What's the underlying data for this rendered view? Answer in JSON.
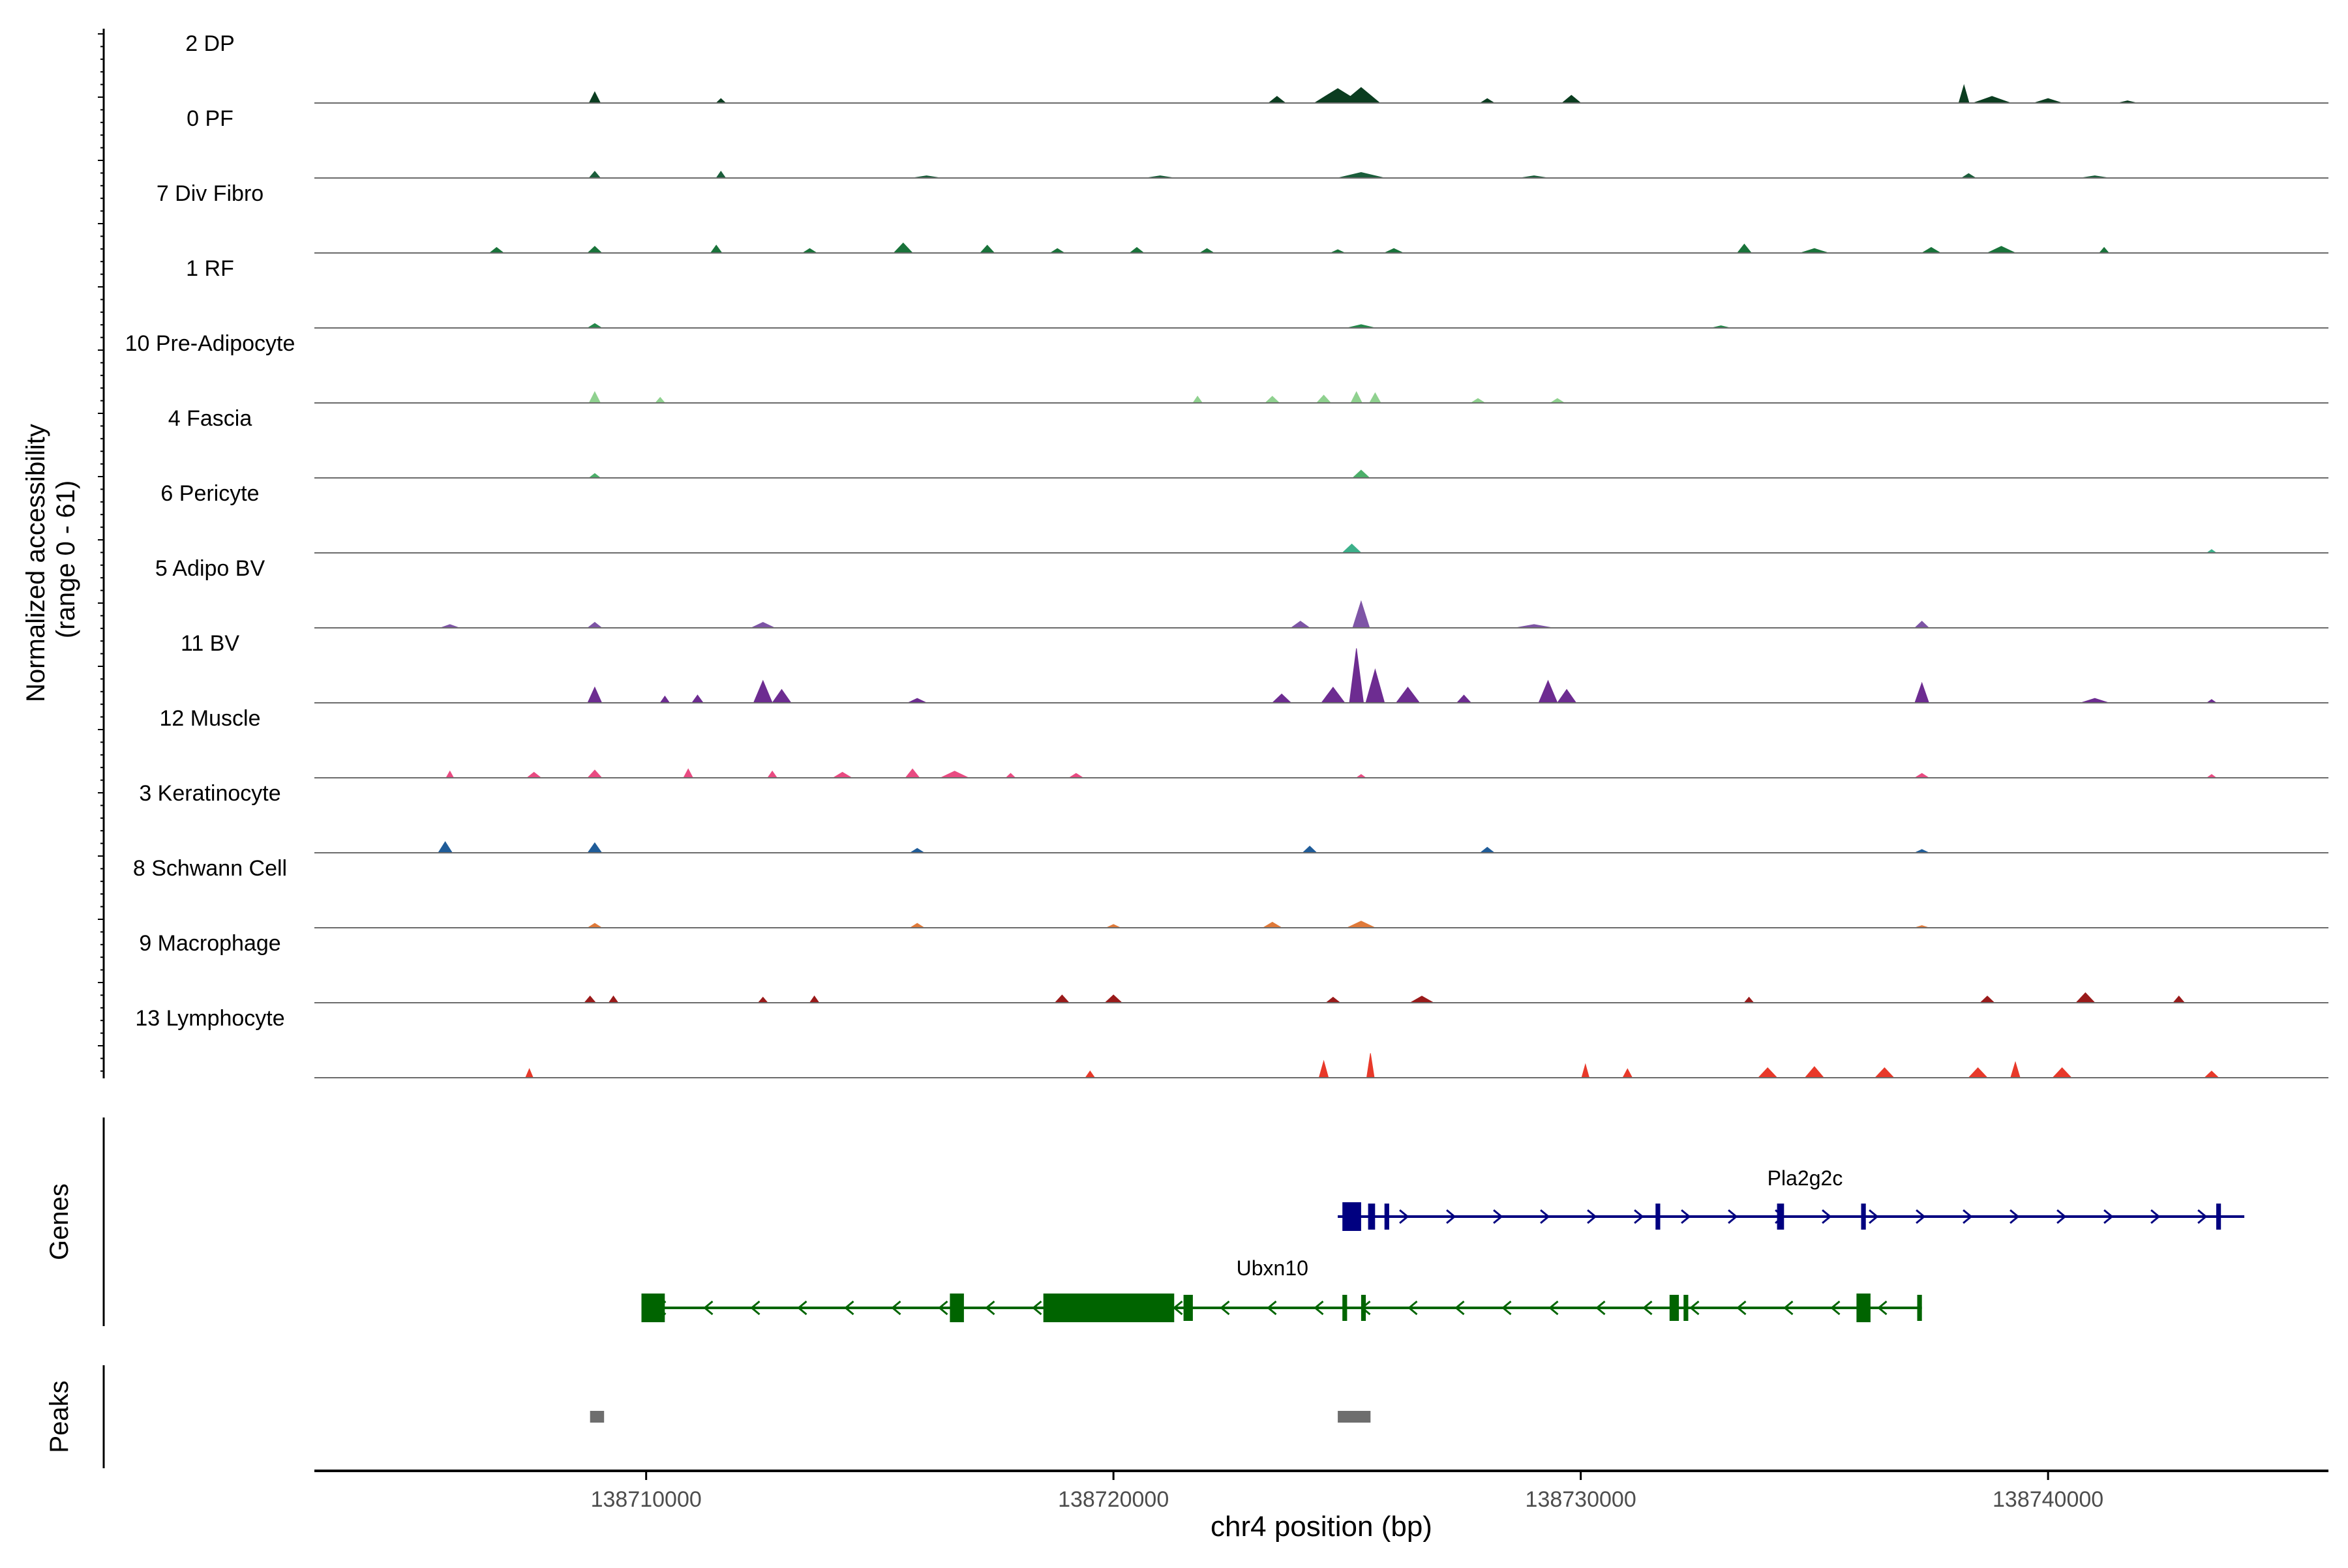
{
  "chart_data": {
    "type": "area",
    "title": "",
    "coverage": {
      "ylabel_line1": "Normalized accessibility",
      "ylabel_line2": "(range 0 - 61)",
      "ymax": 61,
      "tracks": [
        {
          "label": "2 DP",
          "color": "#0b3d20",
          "peaks": [
            [
              138708900,
              10,
              120
            ],
            [
              138711600,
              4,
              100
            ],
            [
              138723500,
              6,
              180
            ],
            [
              138724800,
              13,
              500
            ],
            [
              138725300,
              14,
              400
            ],
            [
              138728000,
              4,
              150
            ],
            [
              138729800,
              7,
              200
            ],
            [
              138738200,
              16,
              110
            ],
            [
              138738800,
              6,
              400
            ],
            [
              138740000,
              4,
              300
            ],
            [
              138741700,
              2,
              200
            ]
          ]
        },
        {
          "label": "0 PF",
          "color": "#1b5e3b",
          "peaks": [
            [
              138708900,
              6,
              120
            ],
            [
              138711600,
              6,
              100
            ],
            [
              138716000,
              2,
              300
            ],
            [
              138721000,
              2,
              300
            ],
            [
              138725300,
              5,
              500
            ],
            [
              138729000,
              2,
              300
            ],
            [
              138738300,
              4,
              150
            ],
            [
              138741000,
              2,
              300
            ]
          ]
        },
        {
          "label": "7 Div Fibro",
          "color": "#19733a",
          "peaks": [
            [
              138706800,
              5,
              150
            ],
            [
              138708900,
              6,
              150
            ],
            [
              138711500,
              7,
              120
            ],
            [
              138713500,
              4,
              150
            ],
            [
              138715500,
              9,
              200
            ],
            [
              138717300,
              7,
              150
            ],
            [
              138718800,
              4,
              150
            ],
            [
              138720500,
              5,
              150
            ],
            [
              138722000,
              4,
              150
            ],
            [
              138724800,
              3,
              150
            ],
            [
              138726000,
              4,
              200
            ],
            [
              138733500,
              8,
              150
            ],
            [
              138735000,
              4,
              300
            ],
            [
              138737500,
              5,
              200
            ],
            [
              138739000,
              6,
              300
            ],
            [
              138741200,
              5,
              100
            ]
          ]
        },
        {
          "label": "1 RF",
          "color": "#24884a",
          "peaks": [
            [
              138708900,
              4,
              150
            ],
            [
              138725300,
              3,
              300
            ],
            [
              138733000,
              2,
              200
            ]
          ]
        },
        {
          "label": "10 Pre-Adipocyte",
          "color": "#8fd18f",
          "peaks": [
            [
              138708900,
              10,
              120
            ],
            [
              138710300,
              5,
              100
            ],
            [
              138721800,
              6,
              100
            ],
            [
              138723400,
              6,
              150
            ],
            [
              138724500,
              7,
              150
            ],
            [
              138725200,
              10,
              120
            ],
            [
              138725600,
              9,
              120
            ],
            [
              138727800,
              4,
              150
            ],
            [
              138729500,
              4,
              150
            ]
          ]
        },
        {
          "label": "4 Fascia",
          "color": "#4caf6a",
          "peaks": [
            [
              138708900,
              4,
              120
            ],
            [
              138725300,
              7,
              180
            ]
          ]
        },
        {
          "label": "6 Pericyte",
          "color": "#3cb08a",
          "peaks": [
            [
              138725100,
              8,
              200
            ],
            [
              138743500,
              3,
              100
            ]
          ]
        },
        {
          "label": "5 Adipo BV",
          "color": "#7e55a6",
          "peaks": [
            [
              138705800,
              3,
              200
            ],
            [
              138708900,
              5,
              150
            ],
            [
              138712500,
              5,
              250
            ],
            [
              138724000,
              6,
              200
            ],
            [
              138725300,
              24,
              180
            ],
            [
              138729000,
              3,
              400
            ],
            [
              138737300,
              6,
              150
            ]
          ]
        },
        {
          "label": "11 BV",
          "color": "#6d2c91",
          "peaks": [
            [
              138708900,
              14,
              150
            ],
            [
              138710400,
              6,
              100
            ],
            [
              138711100,
              7,
              120
            ],
            [
              138712500,
              20,
              200
            ],
            [
              138712900,
              12,
              200
            ],
            [
              138715800,
              4,
              200
            ],
            [
              138723600,
              8,
              200
            ],
            [
              138724700,
              14,
              250
            ],
            [
              138725200,
              49,
              150
            ],
            [
              138725600,
              30,
              200
            ],
            [
              138726300,
              14,
              250
            ],
            [
              138727500,
              7,
              150
            ],
            [
              138729300,
              20,
              200
            ],
            [
              138729700,
              12,
              200
            ],
            [
              138737300,
              18,
              150
            ],
            [
              138741000,
              4,
              300
            ],
            [
              138743500,
              3,
              100
            ]
          ]
        },
        {
          "label": "12 Muscle",
          "color": "#e94b82",
          "peaks": [
            [
              138705800,
              6,
              80
            ],
            [
              138707600,
              5,
              150
            ],
            [
              138708900,
              7,
              150
            ],
            [
              138710900,
              8,
              100
            ],
            [
              138712700,
              6,
              100
            ],
            [
              138714200,
              5,
              200
            ],
            [
              138715700,
              8,
              150
            ],
            [
              138716600,
              6,
              300
            ],
            [
              138717800,
              4,
              100
            ],
            [
              138719200,
              4,
              150
            ],
            [
              138725300,
              3,
              100
            ],
            [
              138737300,
              4,
              150
            ],
            [
              138743500,
              3,
              100
            ]
          ]
        },
        {
          "label": "3 Keratinocyte",
          "color": "#1f5c99",
          "peaks": [
            [
              138705700,
              10,
              150
            ],
            [
              138708900,
              9,
              150
            ],
            [
              138715800,
              4,
              150
            ],
            [
              138724200,
              6,
              150
            ],
            [
              138728000,
              5,
              150
            ],
            [
              138737300,
              3,
              150
            ]
          ]
        },
        {
          "label": "8 Schwann Cell",
          "color": "#e07a3a",
          "peaks": [
            [
              138708900,
              4,
              150
            ],
            [
              138715800,
              4,
              150
            ],
            [
              138720000,
              3,
              150
            ],
            [
              138723400,
              5,
              200
            ],
            [
              138725300,
              6,
              300
            ],
            [
              138737300,
              2,
              150
            ]
          ]
        },
        {
          "label": "9 Macrophage",
          "color": "#9a1a1a",
          "peaks": [
            [
              138708800,
              6,
              120
            ],
            [
              138709300,
              6,
              100
            ],
            [
              138712500,
              5,
              100
            ],
            [
              138713600,
              6,
              100
            ],
            [
              138718900,
              7,
              150
            ],
            [
              138720000,
              7,
              180
            ],
            [
              138724700,
              5,
              150
            ],
            [
              138726600,
              6,
              250
            ],
            [
              138733600,
              5,
              100
            ],
            [
              138738700,
              6,
              150
            ],
            [
              138740800,
              9,
              200
            ],
            [
              138742800,
              6,
              120
            ]
          ]
        },
        {
          "label": "13 Lymphocyte",
          "color": "#e8392a",
          "peaks": [
            [
              138707500,
              8,
              80
            ],
            [
              138719500,
              6,
              100
            ],
            [
              138724500,
              15,
              100
            ],
            [
              138725500,
              22,
              80
            ],
            [
              138730100,
              12,
              80
            ],
            [
              138731000,
              8,
              100
            ],
            [
              138734000,
              9,
              200
            ],
            [
              138735000,
              10,
              200
            ],
            [
              138736500,
              9,
              200
            ],
            [
              138738500,
              9,
              200
            ],
            [
              138739300,
              14,
              100
            ],
            [
              138740300,
              9,
              200
            ],
            [
              138743500,
              6,
              150
            ]
          ]
        }
      ]
    },
    "genes": {
      "ylabel": "Genes",
      "items": [
        {
          "name": "Pla2g2c",
          "strand": "+",
          "color": "#000080",
          "start": 138724800,
          "end": 138744200,
          "exons": [
            [
              138724900,
              138725300,
              "utr"
            ],
            [
              138725450,
              138725600,
              "cds"
            ],
            [
              138725800,
              138725900,
              "cds"
            ],
            [
              138731600,
              138731700,
              "cds"
            ],
            [
              138734200,
              138734350,
              "cds"
            ],
            [
              138736000,
              138736100,
              "cds"
            ],
            [
              138743600,
              138743700,
              "cds"
            ]
          ]
        },
        {
          "name": "Ubxn10",
          "strand": "-",
          "color": "#006400",
          "start": 138709900,
          "end": 138737300,
          "exons": [
            [
              138709900,
              138710400,
              "utr"
            ],
            [
              138716500,
              138716800,
              "utr"
            ],
            [
              138718500,
              138721300,
              "utr"
            ],
            [
              138721500,
              138721700,
              "cds"
            ],
            [
              138724900,
              138725000,
              "cds"
            ],
            [
              138725300,
              138725400,
              "cds"
            ],
            [
              138731900,
              138732100,
              "cds"
            ],
            [
              138732200,
              138732300,
              "cds"
            ],
            [
              138735900,
              138736200,
              "utr"
            ],
            [
              138737200,
              138737300,
              "cds"
            ]
          ]
        }
      ]
    },
    "peaks": {
      "ylabel": "Peaks",
      "color": "#6e6e6e",
      "regions": [
        [
          138708800,
          138709100
        ],
        [
          138724800,
          138725500
        ]
      ]
    },
    "xaxis": {
      "label": "chr4 position (bp)",
      "range": [
        138702900,
        138746000
      ],
      "ticks": [
        138710000,
        138720000,
        138730000,
        138740000
      ]
    }
  }
}
